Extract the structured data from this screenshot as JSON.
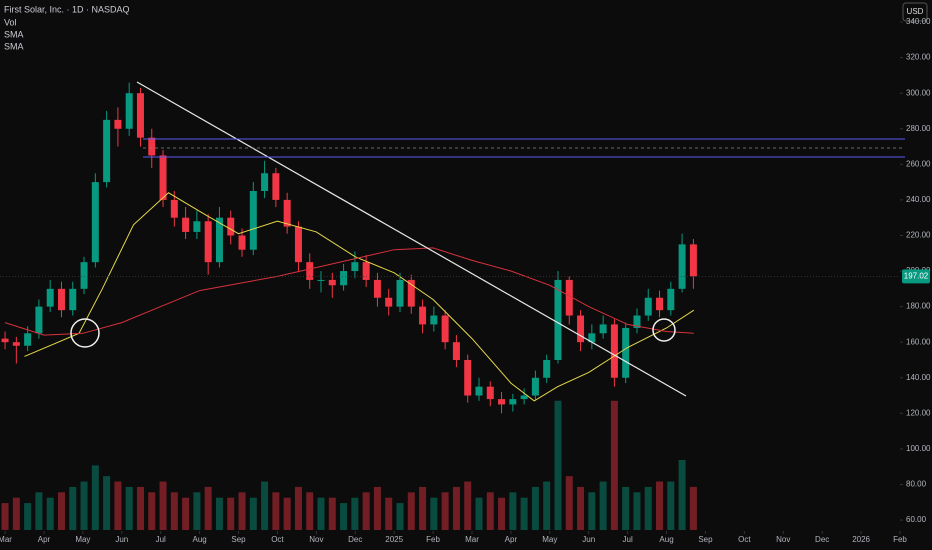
{
  "chart_data": {
    "type": "candlestick",
    "title": "First Solar, Inc. · 1D · NASDAQ",
    "currency": "USD",
    "x": [
      0,
      0.29,
      0.58,
      0.87,
      1.16,
      1.45,
      1.74,
      2.03,
      2.32,
      2.61,
      2.9,
      3.19,
      3.48,
      3.77,
      4.06,
      4.35,
      4.64,
      4.93,
      5.22,
      5.51,
      5.8,
      6.09,
      6.38,
      6.67,
      6.96,
      7.25,
      7.54,
      7.83,
      8.12,
      8.41,
      8.7,
      8.99,
      9.28,
      9.57,
      9.86,
      10.15,
      10.44,
      10.73,
      11.02,
      11.31,
      11.6,
      11.89,
      12.18,
      12.47,
      12.76,
      13.05,
      13.34,
      13.63,
      13.92,
      14.21,
      14.5,
      14.79,
      15.08,
      15.37,
      15.66,
      15.95,
      16.24,
      16.53,
      16.82,
      17.11,
      17.4,
      17.69
    ],
    "open": [
      162,
      160,
      158,
      165,
      180,
      190,
      178,
      190,
      205,
      250,
      285,
      280,
      300,
      275,
      265,
      240,
      230,
      222,
      228,
      205,
      230,
      220,
      212,
      245,
      255,
      240,
      225,
      205,
      195,
      195,
      192,
      200,
      205,
      195,
      185,
      180,
      195,
      180,
      170,
      175,
      160,
      150,
      130,
      135,
      128,
      125,
      128,
      130,
      140,
      150,
      195,
      175,
      160,
      165,
      170,
      140,
      168,
      175,
      185,
      178,
      190,
      215
    ],
    "high": [
      166,
      163,
      169,
      184,
      195,
      194,
      194,
      208,
      255,
      290,
      292,
      306,
      303,
      280,
      268,
      245,
      236,
      234,
      232,
      236,
      234,
      224,
      250,
      262,
      258,
      244,
      228,
      210,
      200,
      199,
      204,
      211,
      209,
      199,
      190,
      199,
      198,
      184,
      180,
      178,
      164,
      153,
      140,
      138,
      132,
      131,
      134,
      144,
      153,
      200,
      197,
      178,
      170,
      175,
      173,
      171,
      179,
      190,
      189,
      194,
      221,
      218
    ],
    "low": [
      156,
      148,
      155,
      162,
      177,
      174,
      175,
      187,
      202,
      247,
      270,
      276,
      270,
      258,
      236,
      225,
      218,
      218,
      198,
      202,
      215,
      208,
      209,
      241,
      236,
      221,
      200,
      190,
      188,
      185,
      189,
      196,
      191,
      180,
      175,
      177,
      176,
      165,
      166,
      156,
      146,
      126,
      127,
      124,
      120,
      121,
      125,
      127,
      137,
      148,
      170,
      155,
      156,
      162,
      135,
      137,
      165,
      172,
      174,
      175,
      188,
      190
    ],
    "close": [
      160,
      158,
      165,
      180,
      190,
      178,
      190,
      205,
      250,
      285,
      280,
      300,
      275,
      265,
      240,
      230,
      222,
      228,
      205,
      230,
      220,
      212,
      245,
      255,
      240,
      225,
      205,
      195,
      195,
      192,
      200,
      205,
      195,
      185,
      180,
      195,
      180,
      170,
      175,
      160,
      150,
      130,
      135,
      128,
      125,
      128,
      130,
      140,
      150,
      195,
      175,
      160,
      165,
      170,
      140,
      168,
      175,
      185,
      178,
      190,
      215,
      197
    ],
    "up_color": "#089981",
    "down_color": "#f23645",
    "volume": {
      "name": "Vol",
      "values": [
        5,
        6,
        5,
        7,
        6,
        7,
        8,
        9,
        12,
        10,
        9,
        8,
        8,
        7,
        9,
        7,
        6,
        7,
        8,
        6,
        6,
        7,
        6,
        9,
        7,
        6,
        8,
        7,
        6,
        6,
        5,
        6,
        7,
        8,
        6,
        5,
        7,
        8,
        6,
        7,
        8,
        9,
        6,
        7,
        6,
        7,
        6,
        8,
        9,
        24,
        10,
        8,
        7,
        9,
        24,
        8,
        7,
        8,
        9,
        9,
        13,
        8
      ],
      "vlim": [
        0,
        26
      ]
    },
    "series": [
      {
        "name": "SMA",
        "color": "#e6d84a",
        "x": [
          0.5,
          1.9,
          2.5,
          3.3,
          4.2,
          5.2,
          6.0,
          7.0,
          8.0,
          9.0,
          10.0,
          11.0,
          12.0,
          13.0,
          13.6,
          14.2,
          15.0,
          16.0,
          17.0,
          17.7
        ],
        "values": [
          152,
          165,
          190,
          226,
          244,
          231,
          221,
          228,
          222,
          208,
          199,
          184,
          162,
          137,
          127,
          135,
          143,
          157,
          168,
          178
        ]
      },
      {
        "name": "SMA",
        "color": "#d8323c",
        "x": [
          0.0,
          1.0,
          2.0,
          3.0,
          4.0,
          5.0,
          6.0,
          7.0,
          8.0,
          9.0,
          10.0,
          11.0,
          12.0,
          13.0,
          14.0,
          15.0,
          16.0,
          17.0,
          17.7
        ],
        "values": [
          171,
          164,
          165,
          171,
          180,
          189,
          193,
          197,
          202,
          207,
          212,
          213,
          206,
          200,
          192,
          180,
          170,
          166,
          165
        ]
      }
    ],
    "last_price": 197.02,
    "xlim": [
      -0.13,
      23.0
    ],
    "xticks": [
      {
        "value": 0,
        "label": "Mar"
      },
      {
        "value": 1,
        "label": "Apr"
      },
      {
        "value": 2,
        "label": "May"
      },
      {
        "value": 3,
        "label": "Jun"
      },
      {
        "value": 4,
        "label": "Jul"
      },
      {
        "value": 5,
        "label": "Aug"
      },
      {
        "value": 6,
        "label": "Sep"
      },
      {
        "value": 7,
        "label": "Oct"
      },
      {
        "value": 8,
        "label": "Nov"
      },
      {
        "value": 9,
        "label": "Dec"
      },
      {
        "value": 10,
        "label": "2025"
      },
      {
        "value": 11,
        "label": "Feb"
      },
      {
        "value": 12,
        "label": "Mar"
      },
      {
        "value": 13,
        "label": "Apr"
      },
      {
        "value": 14,
        "label": "May"
      },
      {
        "value": 15,
        "label": "Jun"
      },
      {
        "value": 16,
        "label": "Jul"
      },
      {
        "value": 17,
        "label": "Aug"
      },
      {
        "value": 18,
        "label": "Sep"
      },
      {
        "value": 19,
        "label": "Oct"
      },
      {
        "value": 20,
        "label": "Nov"
      },
      {
        "value": 21,
        "label": "Dec"
      },
      {
        "value": 22,
        "label": "2026"
      },
      {
        "value": 23,
        "label": "Feb"
      }
    ],
    "ylim": [
      54.4,
      352.4
    ],
    "yticks": [
      {
        "value": 60,
        "label": "60.00"
      },
      {
        "value": 80,
        "label": "80.00"
      },
      {
        "value": 100,
        "label": "100.00"
      },
      {
        "value": 120,
        "label": "120.00"
      },
      {
        "value": 140,
        "label": "140.00"
      },
      {
        "value": 160,
        "label": "160.00"
      },
      {
        "value": 180,
        "label": "180.00"
      },
      {
        "value": 200,
        "label": "200.00"
      },
      {
        "value": 220,
        "label": "220.00"
      },
      {
        "value": 240,
        "label": "240.00"
      },
      {
        "value": 260,
        "label": "260.00"
      },
      {
        "value": 280,
        "label": "280.00"
      },
      {
        "value": 300,
        "label": "300.00"
      },
      {
        "value": 320,
        "label": "320.00"
      },
      {
        "value": 340,
        "label": "340.00"
      }
    ]
  }
}
